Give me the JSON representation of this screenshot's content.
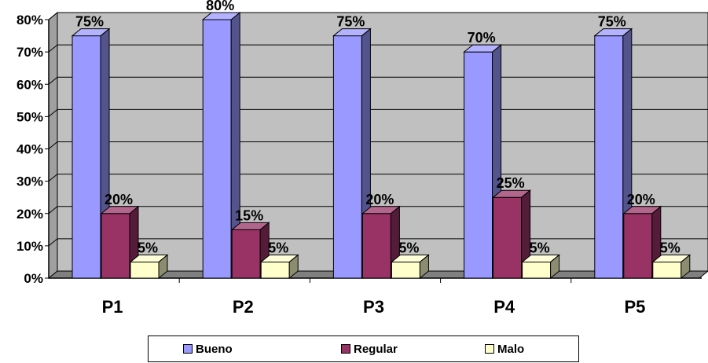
{
  "chart_data": {
    "type": "bar",
    "categories": [
      "P1",
      "P2",
      "P3",
      "P4",
      "P5"
    ],
    "series": [
      {
        "name": "Bueno",
        "values": [
          75,
          80,
          75,
          70,
          75
        ],
        "labels": [
          "75%",
          "80%",
          "75%",
          "70%",
          "75%"
        ],
        "color": "#9999FF"
      },
      {
        "name": "Regular",
        "values": [
          20,
          15,
          20,
          25,
          20
        ],
        "labels": [
          "20%",
          "15%",
          "20%",
          "25%",
          "20%"
        ],
        "color": "#993366"
      },
      {
        "name": "Malo",
        "values": [
          5,
          5,
          5,
          5,
          5
        ],
        "labels": [
          "5%",
          "5%",
          "5%",
          "5%",
          "5%"
        ],
        "color": "#FFFFCC"
      }
    ],
    "y_ticks": [
      "0%",
      "10%",
      "20%",
      "30%",
      "40%",
      "50%",
      "60%",
      "70%",
      "80%"
    ],
    "ylim": [
      0,
      80
    ],
    "grid": true,
    "wall_color": "#C0C0C0",
    "legend_position": "bottom",
    "title": "",
    "xlabel": "",
    "ylabel": ""
  }
}
